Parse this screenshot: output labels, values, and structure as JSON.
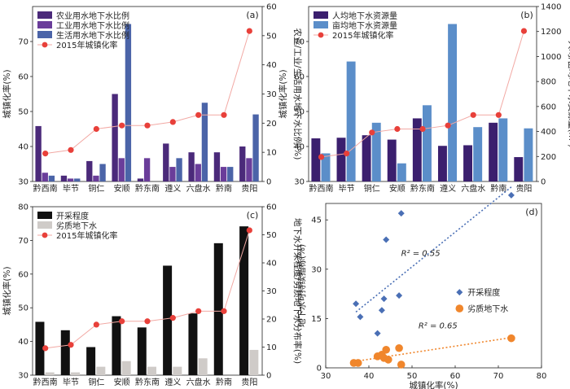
{
  "chart_data": [
    {
      "panel": "(a)",
      "type": "bar",
      "categories": [
        "黔西南",
        "毕节",
        "铜仁",
        "安顺",
        "黔东南",
        "遵义",
        "六盘水",
        "黔南",
        "贵阳"
      ],
      "ylabel": "城镇化率(%)",
      "ylim": [
        30,
        80
      ],
      "yticks": [
        30,
        40,
        50,
        60,
        70
      ],
      "y2label": "农业/工业/生活用水地下水比例(%)",
      "y2lim": [
        0,
        60
      ],
      "y2ticks": [
        0,
        10,
        20,
        30,
        40,
        50,
        60
      ],
      "series": [
        {
          "name": "农业用水地下水比例",
          "axis": "y2",
          "color": "#4b2a7a",
          "values": [
            19,
            2,
            7,
            30,
            1,
            13,
            10,
            10,
            12
          ]
        },
        {
          "name": "工业用水地下水比例",
          "axis": "y2",
          "color": "#6a3d9a",
          "values": [
            3,
            1,
            2,
            8,
            8,
            5,
            6,
            5,
            8
          ]
        },
        {
          "name": "生活用水地下水比例",
          "axis": "y2",
          "color": "#4b64a8",
          "values": [
            2,
            1,
            6,
            54,
            0,
            8,
            27,
            5,
            23
          ]
        },
        {
          "name": "2015年城镇化率",
          "axis": "y",
          "type": "line",
          "color": "#e8403a",
          "values": [
            38,
            39,
            45,
            46,
            46,
            47,
            49,
            49,
            73
          ]
        }
      ]
    },
    {
      "panel": "(b)",
      "type": "bar",
      "categories": [
        "黔西南",
        "毕节",
        "铜仁",
        "安顺",
        "黔东南",
        "遵义",
        "六盘水",
        "黔南",
        "贵阳"
      ],
      "ylabel": "城镇化率(%)",
      "ylim": [
        30,
        80
      ],
      "yticks": [
        30,
        40,
        50,
        60,
        70
      ],
      "y2label": "人均/亩均地下水资源量(m³)",
      "y2lim": [
        0,
        1400
      ],
      "y2ticks": [
        0,
        200,
        400,
        600,
        800,
        1000,
        1200,
        1400
      ],
      "series": [
        {
          "name": "人均地下水资源量",
          "axis": "y2",
          "color": "#3b1f6e",
          "values": [
            345,
            350,
            370,
            335,
            505,
            285,
            290,
            470,
            195
          ]
        },
        {
          "name": "亩均地下水资源量",
          "axis": "y2",
          "color": "#5b8ec9",
          "values": [
            225,
            960,
            470,
            145,
            610,
            1260,
            435,
            505,
            425
          ]
        },
        {
          "name": "2015年城镇化率",
          "axis": "y",
          "type": "line",
          "color": "#e8403a",
          "values": [
            37,
            38,
            44,
            45,
            45,
            46,
            49,
            49,
            73
          ]
        }
      ]
    },
    {
      "panel": "(c)",
      "type": "bar",
      "categories": [
        "黔西南",
        "毕节",
        "铜仁",
        "安顺",
        "黔东南",
        "遵义",
        "六盘水",
        "黔南",
        "贵阳"
      ],
      "ylabel": "城镇化率(%)",
      "ylim": [
        30,
        80
      ],
      "yticks": [
        30,
        40,
        50,
        60,
        70,
        80
      ],
      "y2label": "地下水开采程度/劣质地下水分布率(%)",
      "y2lim": [
        0,
        60
      ],
      "y2ticks": [
        0,
        10,
        20,
        30,
        40,
        50,
        60
      ],
      "series": [
        {
          "name": "开采程度",
          "axis": "y2",
          "color": "#111111",
          "values": [
            19,
            16,
            10,
            21,
            17,
            39,
            22,
            47,
            53
          ]
        },
        {
          "name": "劣质地下水",
          "axis": "y2",
          "color": "#cfcbc8",
          "values": [
            1,
            1,
            3,
            5,
            3,
            3,
            6,
            0,
            9
          ]
        },
        {
          "name": "2015年城镇化率",
          "axis": "y",
          "type": "line",
          "color": "#e8403a",
          "values": [
            38,
            39,
            45,
            46,
            46,
            47,
            49,
            49,
            73
          ]
        }
      ]
    },
    {
      "panel": "(d)",
      "type": "scatter",
      "xlabel": "城镇化率(%)",
      "ylabel": "地下水可持续指标(%)",
      "xlim": [
        30,
        80
      ],
      "xticks": [
        30,
        40,
        50,
        60,
        70,
        80
      ],
      "ylim": [
        0,
        50
      ],
      "yticks": [
        0,
        15,
        30,
        45
      ],
      "series": [
        {
          "name": "开采程度",
          "marker": "diamond",
          "color": "#4a6fb5",
          "x": [
            37,
            38,
            42,
            43,
            43.5,
            44,
            47,
            47.5,
            73
          ],
          "y": [
            19.5,
            15.5,
            10.5,
            17.5,
            21,
            39,
            22,
            47,
            52.5
          ],
          "fit": {
            "r2_label": "R² = 0.55",
            "x": [
              37,
              73
            ],
            "y": [
              17,
              55
            ]
          }
        },
        {
          "name": "劣质地下水",
          "marker": "circle",
          "color": "#f0862c",
          "x": [
            36.5,
            37.5,
            42,
            43,
            43.5,
            44,
            44.5,
            47,
            47.5,
            73
          ],
          "y": [
            1.5,
            1.5,
            3.5,
            4,
            3,
            5.5,
            2.5,
            6,
            1,
            9
          ],
          "fit": {
            "r2_label": "R² = 0.65",
            "x": [
              36,
              73
            ],
            "y": [
              1.8,
              9.2
            ]
          }
        }
      ]
    }
  ]
}
